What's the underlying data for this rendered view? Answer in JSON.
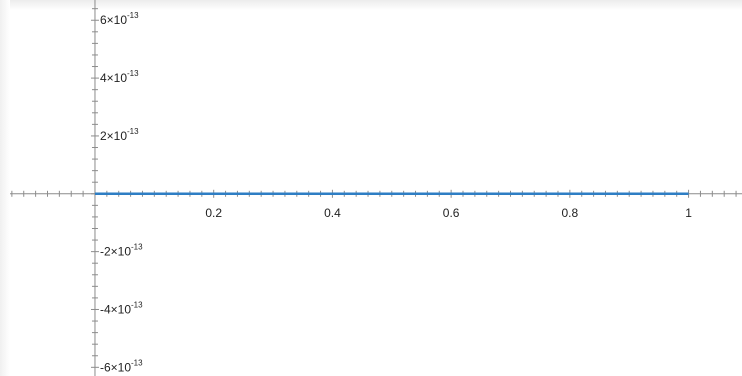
{
  "chart_data": {
    "type": "line",
    "title": "",
    "xlabel": "",
    "ylabel": "",
    "xlim": [
      -0.16,
      1.09
    ],
    "ylim": [
      -6.3e-13,
      6.7e-13
    ],
    "grid": false,
    "x_ticks": [
      {
        "value": 0.2,
        "label": "0.2"
      },
      {
        "value": 0.4,
        "label": "0.4"
      },
      {
        "value": 0.6,
        "label": "0.6"
      },
      {
        "value": 0.8,
        "label": "0.8"
      },
      {
        "value": 1,
        "label": "1"
      }
    ],
    "y_ticks": [
      {
        "value": 6e-13,
        "mantissa": "6×10",
        "exponent": "-13"
      },
      {
        "value": 4e-13,
        "mantissa": "4×10",
        "exponent": "-13"
      },
      {
        "value": 2e-13,
        "mantissa": "2×10",
        "exponent": "-13"
      },
      {
        "value": -2e-13,
        "mantissa": "-2×10",
        "exponent": "-13"
      },
      {
        "value": -4e-13,
        "mantissa": "-4×10",
        "exponent": "-13"
      },
      {
        "value": -6e-13,
        "mantissa": "-6×10",
        "exponent": "-13"
      }
    ],
    "series": [
      {
        "color": "#2e7ec4",
        "x": [
          0,
          0.25,
          0.5,
          0.75,
          1
        ],
        "y": [
          0,
          0,
          0,
          0,
          0
        ]
      }
    ]
  }
}
